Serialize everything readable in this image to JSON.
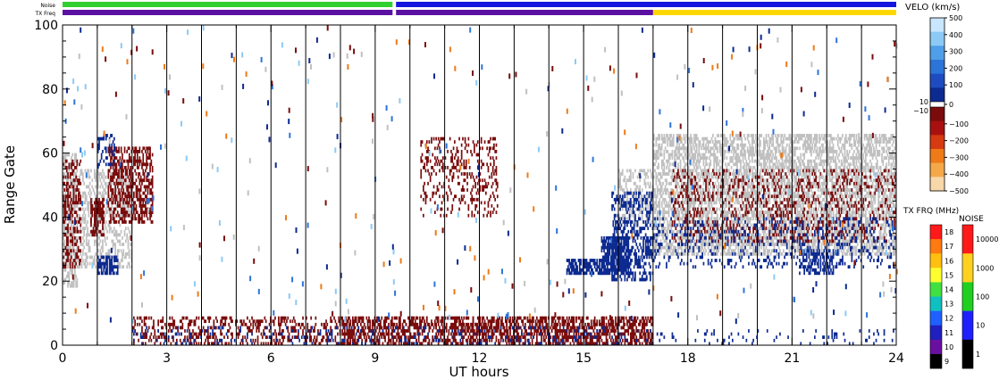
{
  "chart_data": {
    "type": "heatmap",
    "xlabel": "UT hours",
    "ylabel": "Range Gate",
    "xlim": [
      0,
      24
    ],
    "ylim": [
      0,
      100
    ],
    "x_ticks": [
      0,
      3,
      6,
      9,
      12,
      15,
      18,
      21,
      24
    ],
    "y_ticks": [
      0,
      20,
      40,
      60,
      80,
      100
    ],
    "x_tick_labels": [
      "0",
      "3",
      "6",
      "9",
      "12",
      "15",
      "18",
      "21",
      "24"
    ],
    "y_tick_labels": [
      "0",
      "20",
      "40",
      "60",
      "80",
      "100"
    ],
    "grid": "vertical lines every hour",
    "top_strips": {
      "noise_label": "Noise",
      "txfrq_label": "TX Freq",
      "noise_segments": [
        {
          "start": 0,
          "end": 9.5,
          "color": "#2fd02f"
        },
        {
          "start": 9.6,
          "end": 24,
          "color": "#1515e0"
        }
      ],
      "txfrq_segments": [
        {
          "start": 0,
          "end": 9.5,
          "color": "#5a10a0"
        },
        {
          "start": 9.6,
          "end": 17,
          "color": "#5a10a0"
        },
        {
          "start": 17,
          "end": 24,
          "color": "#ffd700"
        }
      ]
    },
    "velocity_scale": {
      "title": "VELO (km/s)",
      "ticks": [
        "500",
        "400",
        "300",
        "200",
        "100",
        "0",
        "−100",
        "−200",
        "−300",
        "−400",
        "−500"
      ],
      "tick_values": [
        500,
        400,
        300,
        200,
        100,
        0,
        -100,
        -200,
        -300,
        -400,
        -500
      ],
      "side_labels": [
        "10",
        "−10"
      ],
      "colors_top_to_bottom": [
        "#c8e6ff",
        "#8ccaf5",
        "#4f9ee8",
        "#2d74d8",
        "#1e4cc0",
        "#0d2a90",
        "#7a0c0c",
        "#a81010",
        "#d63a10",
        "#ee7a18",
        "#f5a848",
        "#f8d8a8"
      ]
    },
    "txfrq_scale": {
      "title": "TX FRQ (MHz)",
      "ticks": [
        "18",
        "17",
        "16",
        "15",
        "14",
        "13",
        "12",
        "11",
        "10",
        "9"
      ],
      "colors_top_to_bottom": [
        "#ff1a1a",
        "#ff7a10",
        "#ffc010",
        "#ffff30",
        "#40e040",
        "#10c0c0",
        "#2060ff",
        "#2020c0",
        "#6a10a0",
        "#000000"
      ]
    },
    "noise_scale": {
      "title": "NOISE",
      "ticks": [
        "10000",
        "1000",
        "100",
        "10",
        "1"
      ],
      "colors_top_to_bottom": [
        "#ff1a1a",
        "#ffd020",
        "#20d020",
        "#2020ff",
        "#000000"
      ]
    },
    "regions": [
      {
        "name": "ground-scatter",
        "color": "#c0c0c0",
        "x0": 0.0,
        "x1": 0.4,
        "y0": 18,
        "y1": 60,
        "density": 0.55
      },
      {
        "name": "ground-scatter",
        "color": "#c0c0c0",
        "x0": 0.4,
        "x1": 2.0,
        "y0": 24,
        "y1": 55,
        "density": 0.35
      },
      {
        "name": "ground-scatter",
        "color": "#c0c0c0",
        "x0": 17.0,
        "x1": 24.0,
        "y0": 28,
        "y1": 66,
        "density": 0.55
      },
      {
        "name": "ground-scatter",
        "color": "#c0c0c0",
        "x0": 16.0,
        "x1": 17.0,
        "y0": 38,
        "y1": 55,
        "density": 0.35
      },
      {
        "name": "negative-velocity",
        "color": "#7a0c0c",
        "x0": 0.0,
        "x1": 0.5,
        "y0": 24,
        "y1": 58,
        "density": 0.35
      },
      {
        "name": "negative-velocity",
        "color": "#7a0c0c",
        "x0": 0.8,
        "x1": 1.2,
        "y0": 34,
        "y1": 46,
        "density": 0.55
      },
      {
        "name": "negative-velocity",
        "color": "#7a0c0c",
        "x0": 1.3,
        "x1": 2.6,
        "y0": 38,
        "y1": 62,
        "density": 0.5
      },
      {
        "name": "negative-velocity",
        "color": "#7a0c0c",
        "x0": 10.3,
        "x1": 12.5,
        "y0": 40,
        "y1": 65,
        "density": 0.2
      },
      {
        "name": "negative-velocity",
        "color": "#7a0c0c",
        "x0": 17.5,
        "x1": 24.0,
        "y0": 32,
        "y1": 55,
        "density": 0.18
      },
      {
        "name": "positive-velocity",
        "color": "#0d2a90",
        "x0": 1.0,
        "x1": 1.6,
        "y0": 22,
        "y1": 28,
        "density": 0.7
      },
      {
        "name": "positive-velocity",
        "color": "#0d2a90",
        "x0": 1.0,
        "x1": 1.5,
        "y0": 56,
        "y1": 66,
        "density": 0.35
      },
      {
        "name": "positive-velocity",
        "color": "#0d2a90",
        "x0": 14.5,
        "x1": 15.5,
        "y0": 22,
        "y1": 27,
        "density": 0.75
      },
      {
        "name": "positive-velocity",
        "color": "#0d2a90",
        "x0": 15.5,
        "x1": 16.3,
        "y0": 22,
        "y1": 34,
        "density": 0.8
      },
      {
        "name": "positive-velocity",
        "color": "#0d2a90",
        "x0": 15.8,
        "x1": 17.0,
        "y0": 20,
        "y1": 48,
        "density": 0.4
      },
      {
        "name": "positive-velocity",
        "color": "#0d2a90",
        "x0": 17.0,
        "x1": 24.0,
        "y0": 24,
        "y1": 40,
        "density": 0.15
      },
      {
        "name": "positive-velocity",
        "color": "#0d2a90",
        "x0": 21.2,
        "x1": 22.2,
        "y0": 22,
        "y1": 30,
        "density": 0.5
      },
      {
        "name": "negative-velocity",
        "color": "#7a0c0c",
        "x0": 2.0,
        "x1": 17.0,
        "y0": 0,
        "y1": 9,
        "density": 0.28
      },
      {
        "name": "negative-velocity",
        "color": "#7a0c0c",
        "x0": 8.0,
        "x1": 17.0,
        "y0": 0,
        "y1": 9,
        "density": 0.35
      },
      {
        "name": "positive-velocity",
        "color": "#0d2a90",
        "x0": 2.0,
        "x1": 17.0,
        "y0": 0,
        "y1": 6,
        "density": 0.1
      },
      {
        "name": "positive-velocity",
        "color": "#0d2a90",
        "x0": 17.0,
        "x1": 24.0,
        "y0": 0,
        "y1": 5,
        "density": 0.06
      }
    ]
  }
}
